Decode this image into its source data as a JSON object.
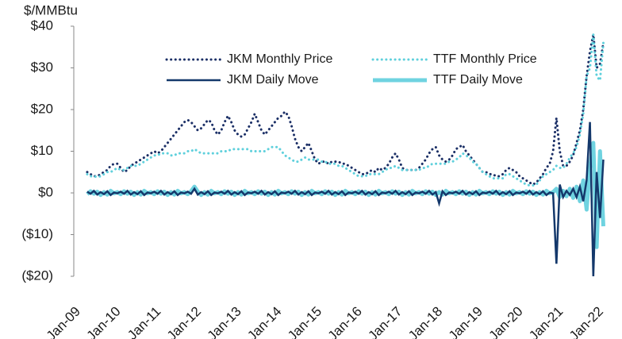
{
  "chart_data": {
    "type": "line",
    "y_label": "$/MMBtu",
    "x": [
      "2009-05",
      "2009-06",
      "2009-07",
      "2009-08",
      "2009-09",
      "2009-10",
      "2009-11",
      "2009-12",
      "2010-01",
      "2010-02",
      "2010-03",
      "2010-04",
      "2010-05",
      "2010-06",
      "2010-07",
      "2010-08",
      "2010-09",
      "2010-10",
      "2010-11",
      "2010-12",
      "2011-01",
      "2011-02",
      "2011-03",
      "2011-04",
      "2011-05",
      "2011-06",
      "2011-07",
      "2011-08",
      "2011-09",
      "2011-10",
      "2011-11",
      "2011-12",
      "2012-01",
      "2012-02",
      "2012-03",
      "2012-04",
      "2012-05",
      "2012-06",
      "2012-07",
      "2012-08",
      "2012-09",
      "2012-10",
      "2012-11",
      "2012-12",
      "2013-01",
      "2013-02",
      "2013-03",
      "2013-04",
      "2013-05",
      "2013-06",
      "2013-07",
      "2013-08",
      "2013-09",
      "2013-10",
      "2013-11",
      "2013-12",
      "2014-01",
      "2014-02",
      "2014-03",
      "2014-04",
      "2014-05",
      "2014-06",
      "2014-07",
      "2014-08",
      "2014-09",
      "2014-10",
      "2014-11",
      "2014-12",
      "2015-01",
      "2015-02",
      "2015-03",
      "2015-04",
      "2015-05",
      "2015-06",
      "2015-07",
      "2015-08",
      "2015-09",
      "2015-10",
      "2015-11",
      "2015-12",
      "2016-01",
      "2016-02",
      "2016-03",
      "2016-04",
      "2016-05",
      "2016-06",
      "2016-07",
      "2016-08",
      "2016-09",
      "2016-10",
      "2016-11",
      "2016-12",
      "2017-01",
      "2017-02",
      "2017-03",
      "2017-04",
      "2017-05",
      "2017-06",
      "2017-07",
      "2017-08",
      "2017-09",
      "2017-10",
      "2017-11",
      "2017-12",
      "2018-01",
      "2018-02",
      "2018-03",
      "2018-04",
      "2018-05",
      "2018-06",
      "2018-07",
      "2018-08",
      "2018-09",
      "2018-10",
      "2018-11",
      "2018-12",
      "2019-01",
      "2019-02",
      "2019-03",
      "2019-04",
      "2019-05",
      "2019-06",
      "2019-07",
      "2019-08",
      "2019-09",
      "2019-10",
      "2019-11",
      "2019-12",
      "2020-01",
      "2020-02",
      "2020-03",
      "2020-04",
      "2020-05",
      "2020-06",
      "2020-07",
      "2020-08",
      "2020-09",
      "2020-10",
      "2020-11",
      "2020-12",
      "2021-01",
      "2021-02",
      "2021-03",
      "2021-04",
      "2021-05",
      "2021-06",
      "2021-07",
      "2021-08",
      "2021-09",
      "2021-10",
      "2021-11",
      "2021-12",
      "2022-01",
      "2022-02",
      "2022-03"
    ],
    "xlim": [
      "2009-01",
      "2022-03"
    ],
    "xticks": [
      {
        "value": "2009-01",
        "label": "Jan-09"
      },
      {
        "value": "2010-01",
        "label": "Jan-10"
      },
      {
        "value": "2011-01",
        "label": "Jan-11"
      },
      {
        "value": "2012-01",
        "label": "Jan-12"
      },
      {
        "value": "2013-01",
        "label": "Jan-13"
      },
      {
        "value": "2014-01",
        "label": "Jan-14"
      },
      {
        "value": "2015-01",
        "label": "Jan-15"
      },
      {
        "value": "2016-01",
        "label": "Jan-16"
      },
      {
        "value": "2017-01",
        "label": "Jan-17"
      },
      {
        "value": "2018-01",
        "label": "Jan-18"
      },
      {
        "value": "2019-01",
        "label": "Jan-19"
      },
      {
        "value": "2020-01",
        "label": "Jan-20"
      },
      {
        "value": "2021-01",
        "label": "Jan-21"
      },
      {
        "value": "2022-01",
        "label": "Jan-22"
      }
    ],
    "ylim": [
      -20,
      40
    ],
    "yticks": [
      {
        "value": 40,
        "label": "$40"
      },
      {
        "value": 30,
        "label": "$30"
      },
      {
        "value": 20,
        "label": "$20"
      },
      {
        "value": 10,
        "label": "$10"
      },
      {
        "value": 0,
        "label": "$0"
      },
      {
        "value": -10,
        "label": "($10)"
      },
      {
        "value": -20,
        "label": "($20)"
      }
    ],
    "grid": false,
    "series": [
      {
        "name": "TTF Daily Move",
        "color": "#6fd3e0",
        "line_style": "thick",
        "values": [
          -0.3,
          0.4,
          -0.2,
          0.3,
          -0.5,
          0.2,
          -0.4,
          0.5,
          -0.1,
          0.2,
          -0.3,
          0.4,
          -0.2,
          0.3,
          -0.5,
          0.2,
          -0.4,
          0.5,
          -0.1,
          0.2,
          -0.3,
          0.4,
          -0.2,
          0.3,
          -0.5,
          0.2,
          -0.4,
          0.5,
          -0.1,
          0.2,
          -0.3,
          0.4,
          1.5,
          0.3,
          -0.5,
          0.2,
          -0.4,
          0.5,
          -0.1,
          0.2,
          -0.3,
          0.4,
          -0.2,
          0.3,
          -0.5,
          0.2,
          -0.4,
          0.5,
          -0.1,
          0.2,
          -0.3,
          0.4,
          -0.2,
          0.3,
          -0.5,
          0.2,
          -0.4,
          0.5,
          -0.1,
          0.2,
          -0.3,
          0.4,
          -0.2,
          0.3,
          -0.5,
          0.2,
          -0.4,
          0.5,
          -0.1,
          0.2,
          -0.3,
          0.4,
          -0.2,
          0.3,
          -0.5,
          0.2,
          -0.4,
          0.5,
          -0.1,
          0.2,
          -0.3,
          0.4,
          -0.2,
          0.3,
          -0.5,
          0.2,
          -0.4,
          0.5,
          -0.1,
          0.2,
          -0.3,
          0.4,
          -0.2,
          0.3,
          -0.5,
          0.2,
          -0.4,
          0.5,
          -0.1,
          0.2,
          -0.3,
          0.4,
          -0.2,
          0.3,
          -0.5,
          0.2,
          -0.4,
          0.5,
          -0.1,
          0.2,
          -0.3,
          0.4,
          -0.2,
          0.3,
          -0.5,
          0.2,
          -0.4,
          0.5,
          -0.1,
          0.2,
          -0.3,
          0.4,
          -0.2,
          0.3,
          -0.5,
          0.2,
          -0.4,
          0.5,
          -0.1,
          0.2,
          -0.3,
          0.4,
          -0.2,
          0.3,
          -0.5,
          0.2,
          -0.4,
          0.5,
          -0.1,
          0.2,
          1,
          -1,
          0.5,
          -0.8,
          1,
          -1.2,
          1.5,
          -2,
          3,
          -4,
          6,
          12,
          -13,
          10,
          -8
        ]
      },
      {
        "name": "JKM Daily Move",
        "color": "#14386b",
        "line_style": "solid",
        "values": [
          0.3,
          -0.2,
          0.5,
          -0.4,
          0.2,
          -0.3,
          0.4,
          -0.5,
          0.1,
          -0.1,
          0.3,
          -0.2,
          0.5,
          -0.4,
          0.2,
          -0.3,
          0.4,
          -0.5,
          0.1,
          -0.1,
          0.3,
          -0.2,
          0.5,
          -0.4,
          0.2,
          -0.3,
          0.4,
          -0.5,
          0.1,
          -0.1,
          0.3,
          -0.2,
          1,
          -0.4,
          0.2,
          -0.3,
          0.4,
          -0.5,
          0.1,
          -0.1,
          0.3,
          -0.2,
          0.5,
          -0.4,
          0.2,
          -0.3,
          0.4,
          -0.5,
          0.1,
          -0.1,
          0.3,
          -0.2,
          0.5,
          -0.4,
          0.2,
          -0.3,
          0.4,
          -0.5,
          0.1,
          -0.1,
          0.3,
          -0.2,
          0.5,
          -0.4,
          0.2,
          -0.3,
          0.4,
          -0.5,
          0.1,
          -0.1,
          0.3,
          -0.2,
          0.5,
          -0.4,
          0.2,
          -0.3,
          0.4,
          -0.5,
          0.1,
          -0.1,
          0.3,
          -0.2,
          0.5,
          -0.4,
          0.2,
          -0.3,
          0.4,
          -0.5,
          0.1,
          -0.1,
          0.3,
          -0.2,
          0.5,
          -0.4,
          0.2,
          -0.3,
          0.4,
          -0.5,
          0.1,
          -0.1,
          0.3,
          -0.2,
          0.5,
          -0.4,
          0.2,
          -2.5,
          0.4,
          -0.5,
          0.1,
          -0.1,
          0.3,
          -0.2,
          0.5,
          -0.4,
          0.2,
          -0.3,
          0.4,
          -0.5,
          0.1,
          -0.1,
          0.3,
          -0.2,
          0.5,
          -0.4,
          0.2,
          -0.3,
          0.4,
          -0.5,
          0.1,
          -0.1,
          0.3,
          -0.2,
          0.5,
          -0.4,
          0.2,
          -0.3,
          0.4,
          -0.5,
          0.1,
          -0.1,
          -17,
          2,
          -1,
          0.5,
          -0.5,
          1,
          -1,
          1.5,
          -2,
          3,
          17,
          -20,
          5,
          -6,
          8
        ]
      },
      {
        "name": "JKM Monthly Price",
        "color": "#1b2f66",
        "line_style": "dotted",
        "values": [
          5,
          4.5,
          4,
          4,
          4.5,
          5,
          5.5,
          6.5,
          7,
          7,
          6,
          5,
          5.5,
          6.5,
          7,
          7.5,
          8,
          8.5,
          9,
          9.5,
          10,
          9.5,
          10,
          11,
          12,
          13,
          14,
          15,
          16,
          17,
          17.5,
          17,
          16,
          15,
          15.5,
          16.5,
          17.5,
          17,
          15,
          14,
          15,
          17,
          18.5,
          17,
          15,
          14,
          13.5,
          14,
          15.5,
          17,
          19,
          17,
          15,
          14,
          15,
          16,
          17,
          18,
          18.5,
          19.5,
          18.5,
          16,
          13,
          11,
          10,
          11,
          12,
          10,
          8,
          7,
          7.5,
          7.5,
          7,
          7.5,
          7.5,
          7.5,
          7,
          7,
          6.5,
          6,
          5.5,
          5,
          4.5,
          4.5,
          5,
          5.5,
          5,
          6,
          5.5,
          6,
          7,
          8.5,
          9.5,
          8,
          6,
          5.5,
          5.5,
          5.5,
          5.5,
          6,
          7,
          8,
          9.5,
          10.5,
          11,
          9,
          8,
          7.5,
          8,
          9,
          10.5,
          11,
          11.5,
          10,
          9,
          8,
          7,
          6,
          5,
          5,
          4.5,
          4.5,
          4,
          4,
          4.5,
          5.5,
          6,
          5.5,
          5,
          4,
          3.5,
          3,
          2.5,
          2,
          2.5,
          3.5,
          4.5,
          6,
          7,
          10,
          18,
          10,
          6.5,
          6.5,
          7.5,
          9,
          12,
          15,
          20,
          28,
          34,
          38,
          30,
          31,
          36
        ]
      },
      {
        "name": "TTF Monthly Price",
        "color": "#5fd0dc",
        "line_style": "dotted",
        "values": [
          4.5,
          4,
          4,
          3.8,
          4,
          4.5,
          5,
          5,
          5.5,
          6,
          5.5,
          5.5,
          6,
          6.5,
          6.5,
          6.5,
          7,
          7.5,
          8,
          8.5,
          9,
          9,
          9.5,
          9.5,
          9.5,
          9,
          9,
          9.5,
          9.5,
          9.5,
          10,
          10,
          10.5,
          10,
          9.5,
          9.5,
          9.5,
          9.5,
          9.5,
          9.5,
          10,
          10,
          10,
          10.5,
          10.5,
          10.5,
          10.5,
          10.5,
          10.5,
          10,
          10,
          10,
          10,
          10,
          10.5,
          11,
          11,
          11,
          10,
          9,
          8.5,
          8,
          7.5,
          7.5,
          8,
          8.5,
          8,
          8,
          8,
          8,
          7.5,
          7.5,
          7,
          7,
          7,
          6.5,
          6.5,
          6,
          5.5,
          5,
          4.5,
          4,
          4,
          4,
          4.5,
          4.5,
          4.5,
          4.5,
          5,
          5.5,
          6,
          6,
          6.5,
          6,
          5.5,
          5.5,
          5.5,
          5.5,
          5.5,
          5.5,
          6,
          6,
          6.5,
          7,
          7,
          7,
          7,
          7,
          7.5,
          7.5,
          8,
          8.5,
          9.5,
          9,
          8.5,
          7.5,
          7,
          6,
          5,
          4.5,
          4,
          3.5,
          3.5,
          3.5,
          3.5,
          4.5,
          4.5,
          4,
          3.5,
          3,
          2.5,
          2,
          1.8,
          1.8,
          2,
          3,
          4,
          4.5,
          5,
          5.5,
          6.5,
          6,
          6,
          7,
          8.5,
          9.5,
          11,
          14,
          19,
          28,
          30,
          38,
          28,
          27,
          36
        ]
      }
    ],
    "legend_order": [
      2,
      3,
      1,
      0
    ],
    "legend": "top"
  }
}
